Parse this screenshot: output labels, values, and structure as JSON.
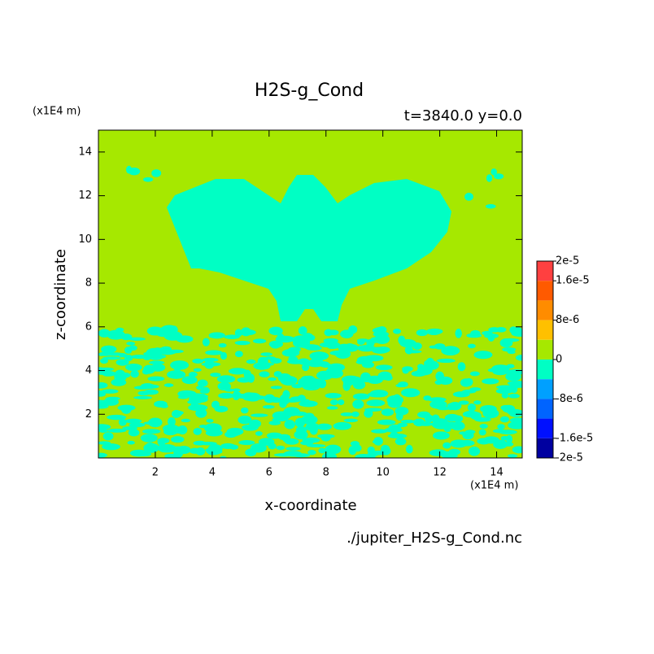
{
  "chart_data": {
    "type": "contour",
    "title": "H2S-g_Cond",
    "subtitle": "t=3840.0 y=0.0",
    "xlabel": "x-coordinate",
    "ylabel": "z-coordinate",
    "x_unit": "(x1E4 m)",
    "y_unit": "(x1E4 m)",
    "footer": "./jupiter_H2S-g_Cond.nc",
    "xlim": [
      0,
      14.9
    ],
    "ylim": [
      0,
      15
    ],
    "xticks": [
      2,
      4,
      6,
      8,
      10,
      12,
      14
    ],
    "yticks": [
      2,
      4,
      6,
      8,
      10,
      12,
      14
    ],
    "levels": [
      2e-05,
      1.6e-05,
      1.2e-05,
      8e-06,
      4e-06,
      0,
      -4e-06,
      -8e-06,
      -1.2e-05,
      -1.6e-05,
      -2e-05
    ],
    "level_colors": [
      "#ff4040",
      "#ff5a00",
      "#ff8c00",
      "#ffc000",
      "#a6e800",
      "#00ffc4",
      "#00a0ff",
      "#0064ff",
      "#0010ff",
      "#0000a0"
    ],
    "level_ticks": [
      {
        "value": 2e-05,
        "label": "2e-5"
      },
      {
        "value": 1.6e-05,
        "label": "1.6e-5"
      },
      {
        "value": 8e-06,
        "label": "8e-6"
      },
      0,
      {
        "value": -8e-06,
        "label": "-8e-6"
      },
      {
        "value": -1.6e-05,
        "label": "-1.6e-5"
      },
      {
        "value": -2e-05,
        "label": "-2e-5"
      }
    ]
  }
}
